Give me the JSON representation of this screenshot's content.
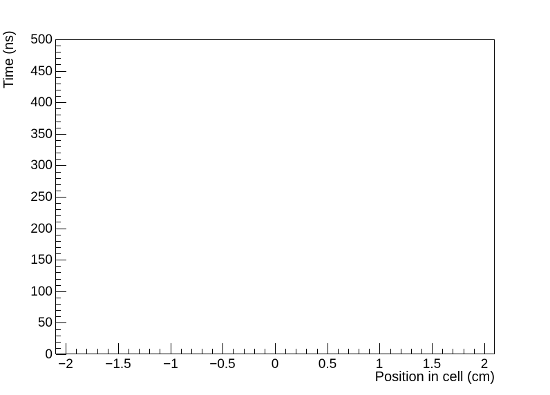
{
  "chart_data": {
    "type": "line",
    "title": "",
    "xlabel": "Position in cell (cm)",
    "ylabel": "Time (ns)",
    "xlim": [
      -2.1,
      2.1
    ],
    "ylim": [
      0,
      500
    ],
    "grid": false,
    "legend": "none",
    "series": [],
    "note": "empty axes frame, no data plotted",
    "x_axis": {
      "major_tick_values": [
        -2,
        -1.5,
        -1,
        -0.5,
        0,
        0.5,
        1,
        1.5,
        2
      ],
      "major_tick_labels": [
        "−2",
        "−1.5",
        "−1",
        "−0.5",
        "0",
        "0.5",
        "1",
        "1.5",
        "2"
      ],
      "minor_tick_step": 0.1
    },
    "y_axis": {
      "major_tick_values": [
        0,
        50,
        100,
        150,
        200,
        250,
        300,
        350,
        400,
        450,
        500
      ],
      "major_tick_labels": [
        "0",
        "50",
        "100",
        "150",
        "200",
        "250",
        "300",
        "350",
        "400",
        "450",
        "500"
      ],
      "minor_tick_step": 10
    }
  },
  "colors": {
    "axis": "#000000",
    "background": "#ffffff"
  }
}
